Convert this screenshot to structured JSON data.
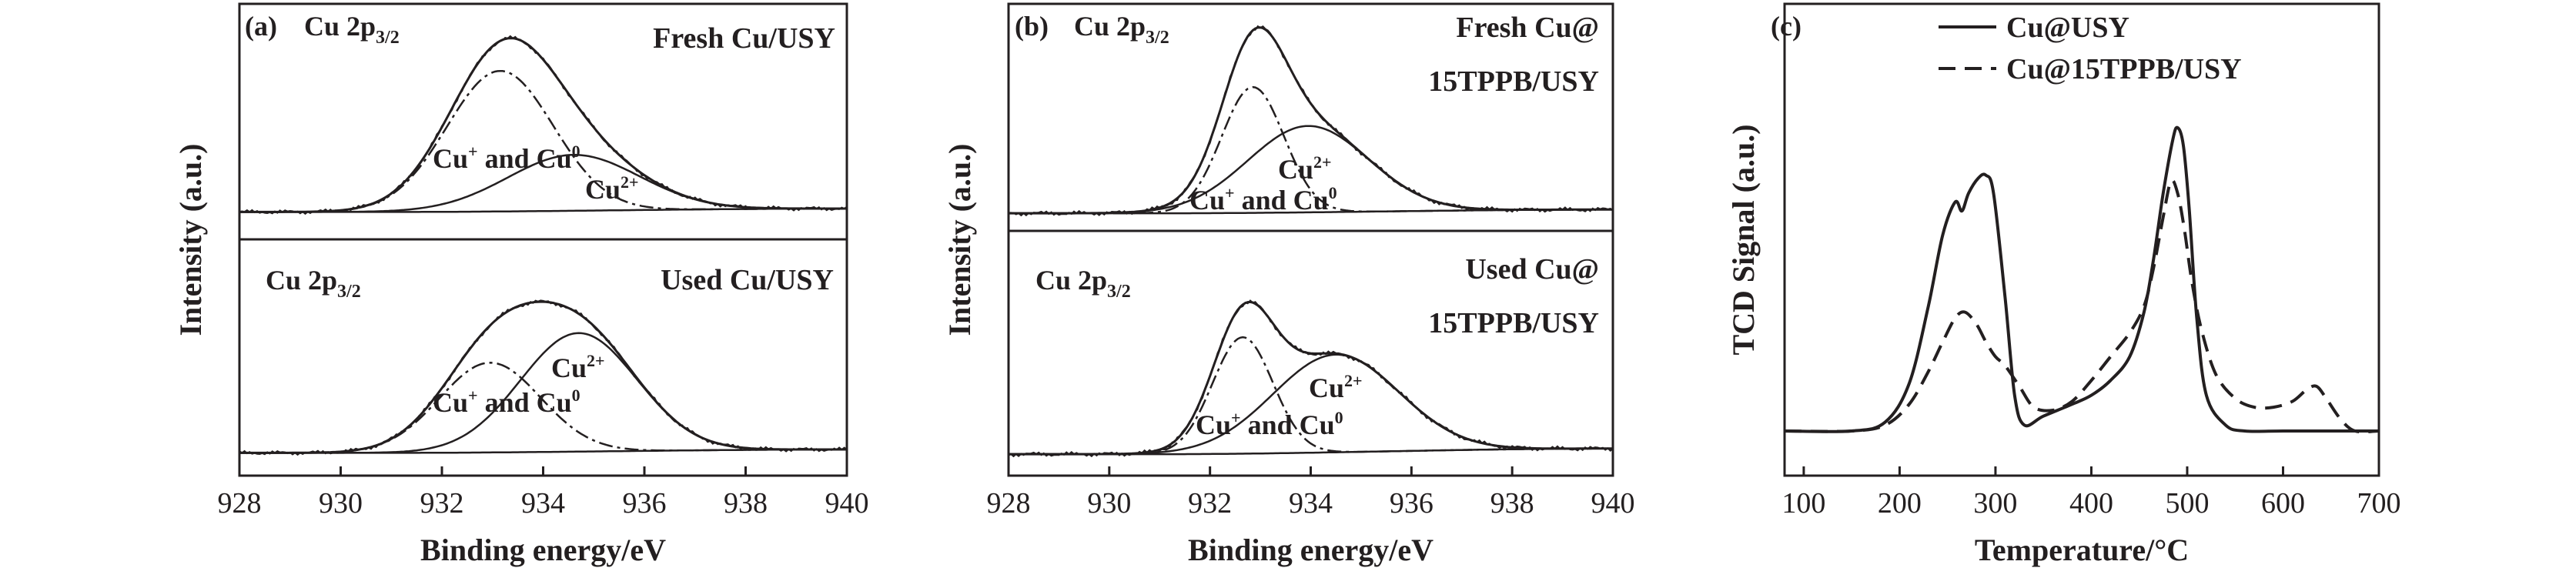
{
  "panels": {
    "a": {
      "label": "(a)",
      "top_core": "Cu 2p",
      "top_sub": "3/2",
      "top_title": "Fresh Cu/USY",
      "top_annot1": "Cu",
      "top_annot1_sup": "+",
      "top_annot1_mid": " and Cu",
      "top_annot1_sup2": "0",
      "top_annot2": "Cu",
      "top_annot2_sup": "2+",
      "bottom_core": "Cu 2p",
      "bottom_sub": "3/2",
      "bottom_title": "Used Cu/USY",
      "bottom_annot1": "Cu",
      "bottom_annot1_sup": "2+",
      "bottom_annot2": "Cu",
      "bottom_annot2_sup": "+",
      "bottom_annot2_mid": " and Cu",
      "bottom_annot2_sup2": "0"
    },
    "b": {
      "label": "(b)",
      "top_core": "Cu 2p",
      "top_sub": "3/2",
      "top_title1": "Fresh Cu@",
      "top_title2": "15TPPB/USY",
      "top_annot1": "Cu",
      "top_annot1_sup": "2+",
      "top_annot2": "Cu",
      "top_annot2_sup": "+",
      "top_annot2_mid": " and Cu",
      "top_annot2_sup2": "0",
      "bottom_core": "Cu 2p",
      "bottom_sub": "3/2",
      "bottom_title1": "Used Cu@",
      "bottom_title2": "15TPPB/USY",
      "bottom_annot1": "Cu",
      "bottom_annot1_sup": "2+",
      "bottom_annot2": "Cu",
      "bottom_annot2_sup": "+",
      "bottom_annot2_mid": " and Cu",
      "bottom_annot2_sup2": "0"
    },
    "c": {
      "label": "(c)"
    }
  },
  "chart_data": [
    {
      "id": "a",
      "type": "line",
      "xlabel": "Binding energy/eV",
      "ylabel": "Intensity (a.u.)",
      "xlim": [
        928,
        940
      ],
      "xticks": [
        928,
        930,
        932,
        934,
        936,
        938,
        940
      ],
      "colors": {
        "line": "#231f20"
      },
      "subplots": [
        {
          "name": "Fresh Cu/USY",
          "background": [
            [
              928,
              0.03
            ],
            [
              931,
              0.03
            ],
            [
              940,
              0.05
            ]
          ],
          "components": [
            {
              "name": "Cu+ and Cu0",
              "style": "dash-dot",
              "center": 933.15,
              "width": 1.05,
              "height": 0.83
            },
            {
              "name": "Cu2+",
              "style": "solid",
              "center": 934.6,
              "width": 1.3,
              "height": 0.33
            }
          ],
          "envelope_peak": [
            933.25,
            0.95
          ]
        },
        {
          "name": "Used Cu/USY",
          "background": [
            [
              928,
              0.03
            ],
            [
              931,
              0.03
            ],
            [
              940,
              0.05
            ]
          ],
          "components": [
            {
              "name": "Cu+ and Cu0",
              "style": "dash-dot",
              "center": 932.95,
              "width": 1.0,
              "height": 0.53
            },
            {
              "name": "Cu2+",
              "style": "solid",
              "center": 934.7,
              "width": 1.15,
              "height": 0.7
            }
          ],
          "envelope_peak": [
            933.9,
            0.95
          ]
        }
      ]
    },
    {
      "id": "b",
      "type": "line",
      "xlabel": "Binding energy/eV",
      "ylabel": "Intensity (a.u.)",
      "xlim": [
        928,
        940
      ],
      "xticks": [
        928,
        930,
        932,
        934,
        936,
        938,
        940
      ],
      "colors": {
        "line": "#231f20"
      },
      "subplots": [
        {
          "name": "Fresh Cu@15TPPB/USY",
          "background": [
            [
              928,
              0.02
            ],
            [
              931,
              0.02
            ],
            [
              940,
              0.04
            ]
          ],
          "components": [
            {
              "name": "Cu+ and Cu0",
              "style": "dash-dot",
              "center": 932.85,
              "width": 0.62,
              "height": 0.67
            },
            {
              "name": "Cu2+",
              "style": "solid",
              "center": 933.95,
              "width": 1.2,
              "height": 0.46
            }
          ],
          "envelope_peak": [
            933.0,
            1.0
          ]
        },
        {
          "name": "Used Cu@15TPPB/USY",
          "background": [
            [
              928,
              0.02
            ],
            [
              931,
              0.02
            ],
            [
              940,
              0.05
            ]
          ],
          "components": [
            {
              "name": "Cu+ and Cu0",
              "style": "dash-dot",
              "center": 932.65,
              "width": 0.6,
              "height": 0.62
            },
            {
              "name": "Cu2+",
              "style": "solid",
              "center": 934.5,
              "width": 1.25,
              "height": 0.52
            }
          ],
          "envelope_peak": [
            932.75,
            0.82
          ]
        }
      ]
    },
    {
      "id": "c",
      "type": "line",
      "xlabel": "Temperature/°C",
      "ylabel": "TCD Signal (a.u.)",
      "xlim": [
        80,
        700
      ],
      "xticks": [
        100,
        200,
        300,
        400,
        500,
        600,
        700
      ],
      "ylim": [
        0,
        1.1
      ],
      "legend": "top-left",
      "colors": {
        "line": "#231f20"
      },
      "series": [
        {
          "name": "Cu@USY",
          "style": "solid",
          "x": [
            80,
            150,
            185,
            210,
            230,
            245,
            258,
            265,
            272,
            282,
            290,
            298,
            310,
            320,
            330,
            350,
            380,
            400,
            420,
            440,
            455,
            465,
            475,
            485,
            490,
            496,
            502,
            510,
            520,
            540,
            560,
            600,
            650,
            700
          ],
          "y": [
            0.0,
            0.0,
            0.03,
            0.16,
            0.42,
            0.66,
            0.77,
            0.74,
            0.8,
            0.85,
            0.86,
            0.8,
            0.45,
            0.12,
            0.02,
            0.05,
            0.09,
            0.12,
            0.17,
            0.25,
            0.4,
            0.58,
            0.8,
            0.98,
            1.02,
            0.96,
            0.75,
            0.38,
            0.12,
            0.02,
            0.0,
            0.0,
            0.0,
            0.0
          ]
        },
        {
          "name": "Cu@15TPPB/USY",
          "style": "dashed",
          "x": [
            80,
            150,
            185,
            210,
            230,
            245,
            258,
            268,
            280,
            290,
            300,
            310,
            325,
            340,
            360,
            380,
            400,
            420,
            440,
            455,
            465,
            475,
            483,
            490,
            497,
            505,
            515,
            530,
            550,
            570,
            590,
            610,
            625,
            635,
            645,
            660,
            675,
            700
          ],
          "y": [
            0.0,
            0.0,
            0.02,
            0.09,
            0.2,
            0.3,
            0.38,
            0.4,
            0.36,
            0.3,
            0.25,
            0.22,
            0.15,
            0.08,
            0.07,
            0.1,
            0.17,
            0.25,
            0.33,
            0.42,
            0.55,
            0.72,
            0.84,
            0.8,
            0.68,
            0.5,
            0.34,
            0.19,
            0.11,
            0.08,
            0.08,
            0.1,
            0.14,
            0.15,
            0.11,
            0.04,
            0.0,
            0.0
          ]
        }
      ]
    }
  ]
}
